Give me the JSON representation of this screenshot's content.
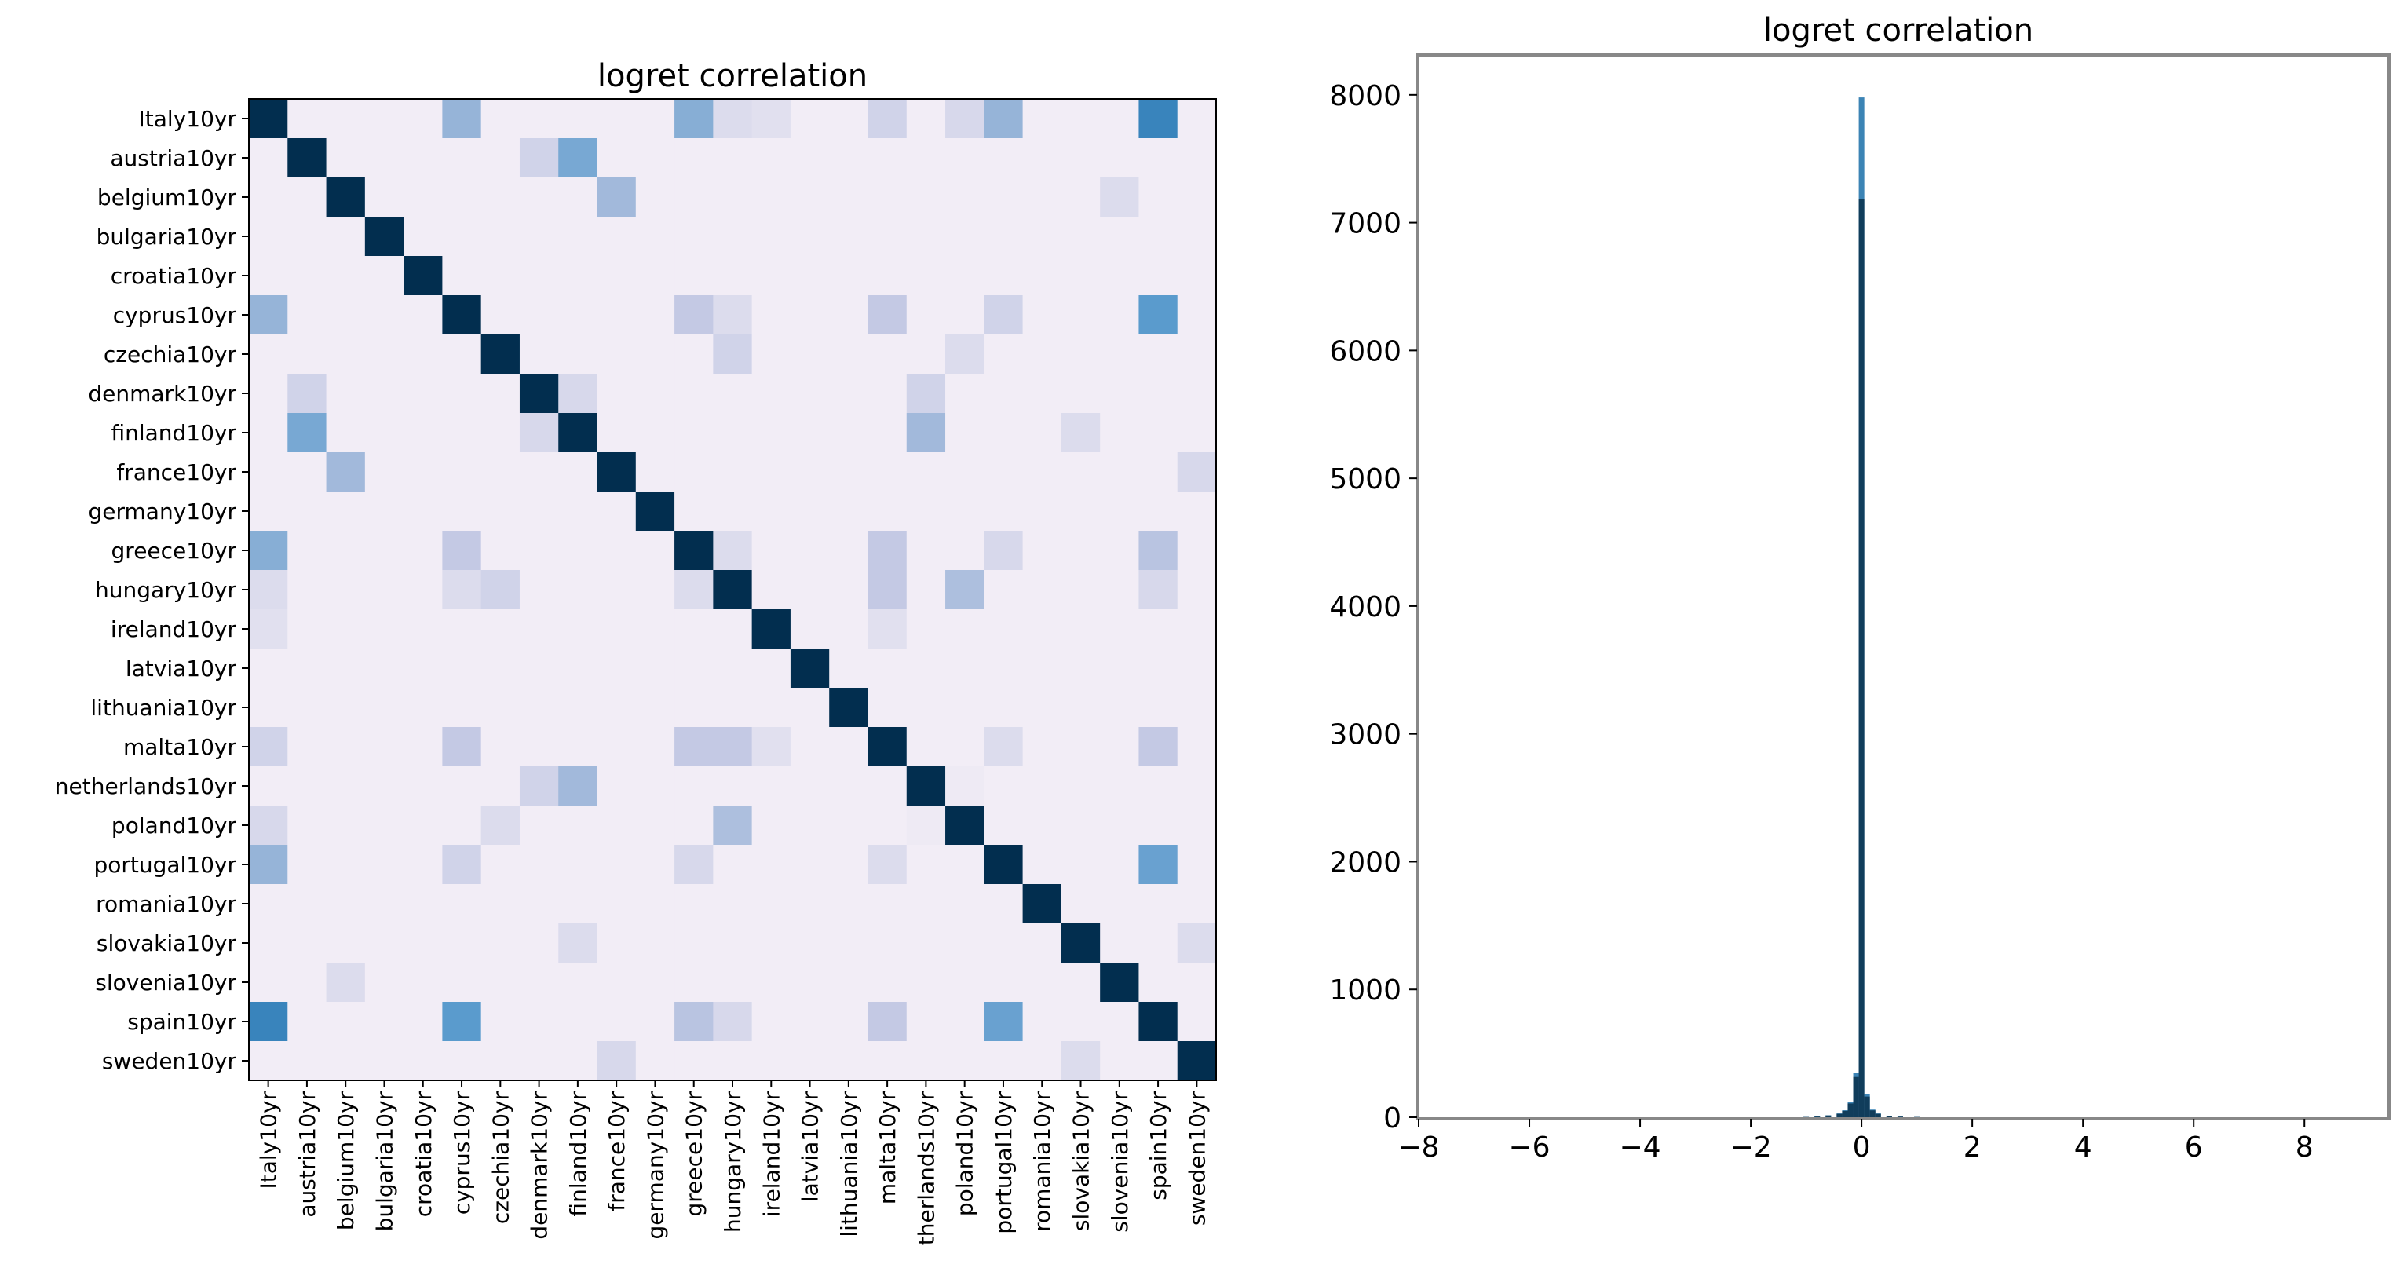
{
  "chart_data": [
    {
      "type": "heatmap",
      "title": "logret correlation",
      "row_labels": [
        "Italy10yr",
        "austria10yr",
        "belgium10yr",
        "bulgaria10yr",
        "croatia10yr",
        "cyprus10yr",
        "czechia10yr",
        "denmark10yr",
        "finland10yr",
        "france10yr",
        "germany10yr",
        "greece10yr",
        "hungary10yr",
        "ireland10yr",
        "latvia10yr",
        "lithuania10yr",
        "malta10yr",
        "netherlands10yr",
        "poland10yr",
        "portugal10yr",
        "romania10yr",
        "slovakia10yr",
        "slovenia10yr",
        "spain10yr",
        "sweden10yr"
      ],
      "col_labels": [
        "Italy10yr",
        "austria10yr",
        "belgium10yr",
        "bulgaria10yr",
        "croatia10yr",
        "cyprus10yr",
        "czechia10yr",
        "denmark10yr",
        "finland10yr",
        "france10yr",
        "germany10yr",
        "greece10yr",
        "hungary10yr",
        "ireland10yr",
        "latvia10yr",
        "lithuania10yr",
        "malta10yr",
        "therlands10yr",
        "poland10yr",
        "portugal10yr",
        "romania10yr",
        "slovakia10yr",
        "slovenia10yr",
        "spain10yr",
        "sweden10yr"
      ],
      "default_value": 0.1,
      "cells": [
        [
          0,
          5,
          0.5
        ],
        [
          0,
          11,
          0.55
        ],
        [
          0,
          12,
          0.2
        ],
        [
          0,
          13,
          0.18
        ],
        [
          0,
          16,
          0.25
        ],
        [
          0,
          18,
          0.22
        ],
        [
          0,
          19,
          0.5
        ],
        [
          0,
          23,
          0.8
        ],
        [
          1,
          7,
          0.25
        ],
        [
          1,
          8,
          0.6
        ],
        [
          2,
          9,
          0.45
        ],
        [
          2,
          22,
          0.2
        ],
        [
          5,
          11,
          0.3
        ],
        [
          5,
          12,
          0.2
        ],
        [
          5,
          16,
          0.3
        ],
        [
          5,
          19,
          0.25
        ],
        [
          5,
          23,
          0.7
        ],
        [
          6,
          12,
          0.25
        ],
        [
          6,
          18,
          0.2
        ],
        [
          7,
          8,
          0.22
        ],
        [
          7,
          17,
          0.25
        ],
        [
          8,
          17,
          0.45
        ],
        [
          8,
          21,
          0.2
        ],
        [
          9,
          24,
          0.22
        ],
        [
          11,
          12,
          0.2
        ],
        [
          11,
          16,
          0.3
        ],
        [
          11,
          19,
          0.22
        ],
        [
          11,
          23,
          0.35
        ],
        [
          12,
          18,
          0.4
        ],
        [
          12,
          16,
          0.3
        ],
        [
          12,
          23,
          0.22
        ],
        [
          13,
          16,
          0.18
        ],
        [
          16,
          19,
          0.2
        ],
        [
          16,
          23,
          0.3
        ],
        [
          17,
          18,
          0.12
        ],
        [
          19,
          23,
          0.65
        ],
        [
          21,
          24,
          0.2
        ]
      ]
    },
    {
      "type": "histogram",
      "title": "logret correlation",
      "xlim": [
        -8,
        9.5
      ],
      "ylim": [
        0,
        8300
      ],
      "xticks": [
        -8,
        -6,
        -4,
        -2,
        0,
        2,
        4,
        6,
        8
      ],
      "xtick_labels": [
        "−8",
        "−6",
        "−4",
        "−2",
        "0",
        "2",
        "4",
        "6",
        "8"
      ],
      "yticks": [
        0,
        1000,
        2000,
        3000,
        4000,
        5000,
        6000,
        7000,
        8000
      ],
      "ytick_labels": [
        "0",
        "1000",
        "2000",
        "3000",
        "4000",
        "5000",
        "6000",
        "7000",
        "8000"
      ],
      "bins": [
        {
          "x": -1.0,
          "count": 2
        },
        {
          "x": -0.8,
          "count": 6
        },
        {
          "x": -0.6,
          "count": 15
        },
        {
          "x": -0.4,
          "count": 30
        },
        {
          "x": -0.3,
          "count": 55
        },
        {
          "x": -0.2,
          "count": 120
        },
        {
          "x": -0.1,
          "count": 350
        },
        {
          "x": 0.0,
          "count": 7980
        },
        {
          "x": 0.1,
          "count": 180
        },
        {
          "x": 0.2,
          "count": 60
        },
        {
          "x": 0.3,
          "count": 30
        },
        {
          "x": 0.5,
          "count": 12
        },
        {
          "x": 0.7,
          "count": 5
        },
        {
          "x": 1.0,
          "count": 2
        }
      ]
    }
  ]
}
